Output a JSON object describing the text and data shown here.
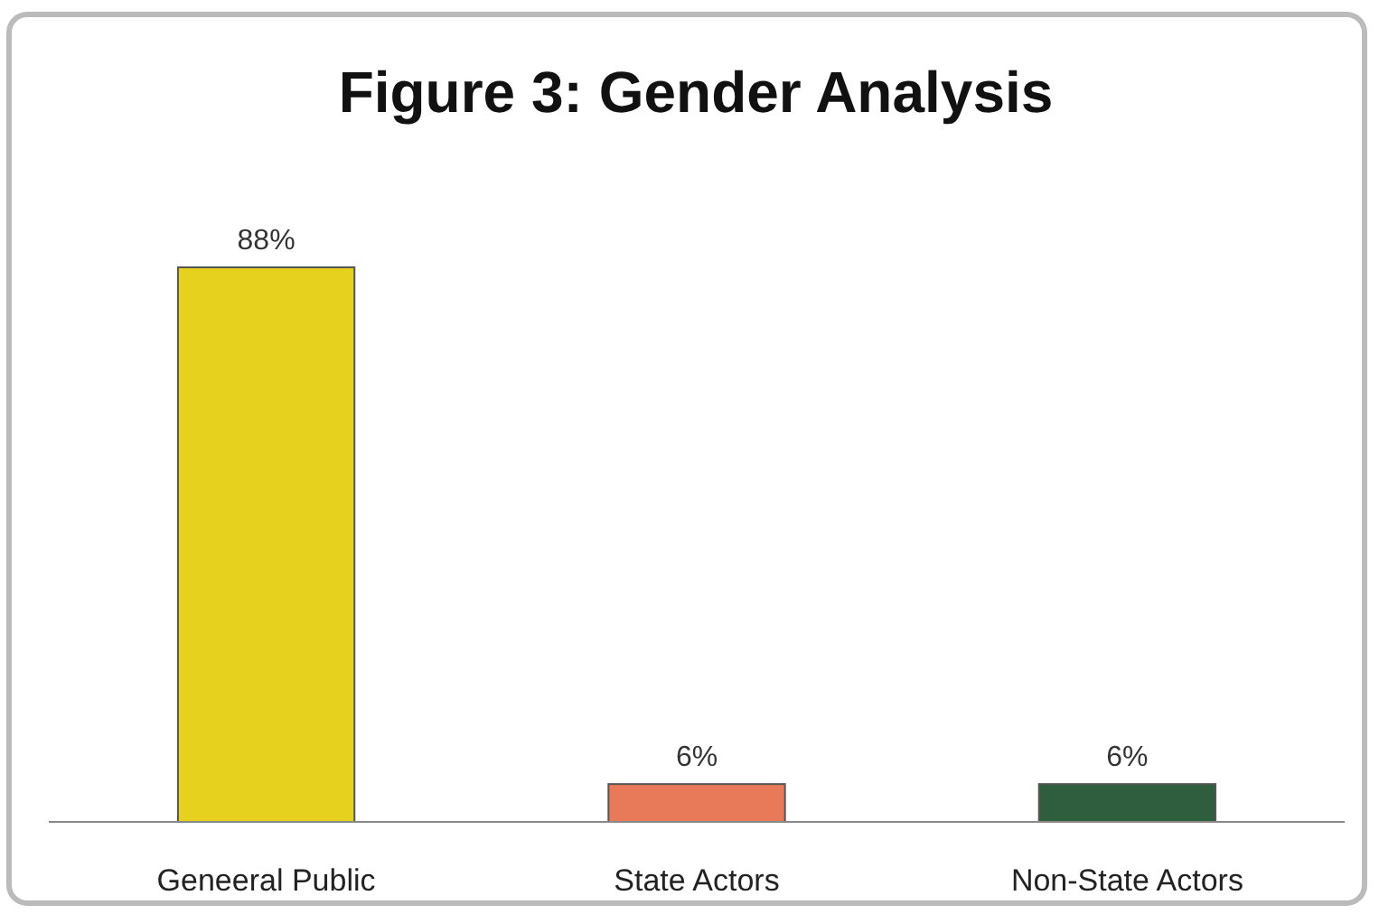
{
  "chart_data": {
    "type": "bar",
    "title": "Figure 3: Gender Analysis",
    "categories": [
      "Geneeral Public",
      "State Actors",
      "Non-State Actors"
    ],
    "values": [
      88,
      6,
      6
    ],
    "colors": [
      "#e6d21e",
      "#e87a5a",
      "#2e5e3e"
    ],
    "value_labels": [
      "88%",
      "6%",
      "6%"
    ]
  }
}
